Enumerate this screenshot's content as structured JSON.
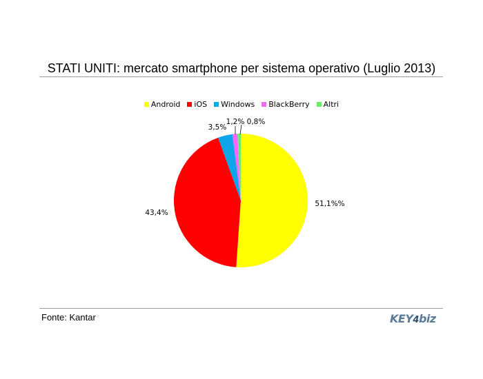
{
  "chart_data": {
    "type": "pie",
    "title": "STATI UNITI: mercato smartphone per sistema operativo (Luglio 2013)",
    "legend_position": "top",
    "series": [
      {
        "name": "Android",
        "value": 51.1,
        "label": "51,1%%",
        "color": "#ffff00"
      },
      {
        "name": "iOS",
        "value": 43.4,
        "label": "43,4%",
        "color": "#ff0000"
      },
      {
        "name": "Windows",
        "value": 3.5,
        "label": "3,5%",
        "color": "#0ea5e9"
      },
      {
        "name": "BlackBerry",
        "value": 1.2,
        "label": "1,2%",
        "color": "#ff66ff"
      },
      {
        "name": "Altri",
        "value": 0.8,
        "label": "0,8%",
        "color": "#66ee66"
      }
    ]
  },
  "footer": {
    "source": "Fonte: Kantar",
    "logo": "KEY4biz",
    "logo_parts": {
      "pre": "KEY",
      "num": "4",
      "post": "biz"
    }
  }
}
